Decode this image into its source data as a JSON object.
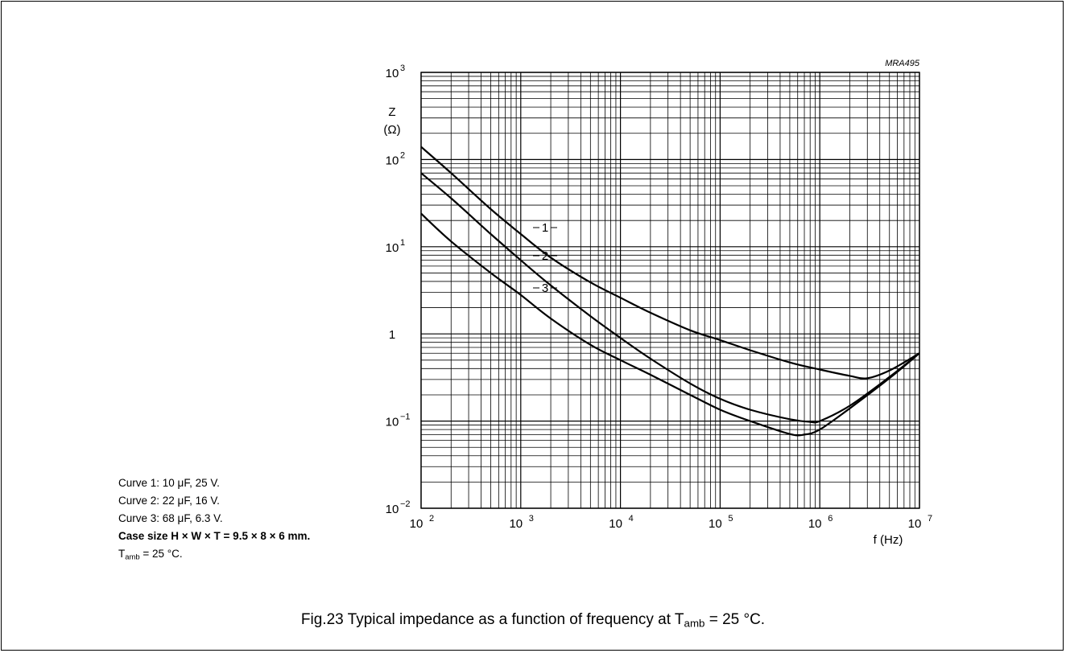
{
  "chart_data": {
    "type": "line",
    "figure_code": "MRA495",
    "title": "",
    "x_scale": "log",
    "y_scale": "log",
    "xlim": [
      100,
      10000000
    ],
    "ylim": [
      0.01,
      1000
    ],
    "grid": true,
    "xlabel": "f  (Hz)",
    "ylabel": "Z",
    "ylabel_unit": "(Ω)",
    "x_ticks": [
      {
        "base": "10",
        "exp": "2"
      },
      {
        "base": "10",
        "exp": "3"
      },
      {
        "base": "10",
        "exp": "4"
      },
      {
        "base": "10",
        "exp": "5"
      },
      {
        "base": "10",
        "exp": "6"
      },
      {
        "base": "10",
        "exp": "7"
      }
    ],
    "y_ticks": [
      {
        "base": "10",
        "exp": "−2"
      },
      {
        "base": "10",
        "exp": "−1"
      },
      {
        "base": "1",
        "exp": ""
      },
      {
        "base": "10",
        "exp": "1"
      },
      {
        "base": "10",
        "exp": "2"
      },
      {
        "base": "10",
        "exp": "3"
      }
    ],
    "series": [
      {
        "name": "1",
        "x": [
          100,
          200,
          500,
          1000,
          2000,
          5000,
          10000,
          20000,
          50000,
          100000,
          200000,
          500000,
          1000000,
          2000000,
          3000000,
          5000000,
          10000000
        ],
        "y": [
          140,
          70,
          27,
          14,
          7.5,
          3.9,
          2.6,
          1.75,
          1.1,
          0.85,
          0.65,
          0.47,
          0.39,
          0.33,
          0.31,
          0.38,
          0.6
        ]
      },
      {
        "name": "2",
        "x": [
          100,
          200,
          500,
          1000,
          2000,
          5000,
          10000,
          20000,
          50000,
          100000,
          200000,
          500000,
          800000,
          1000000,
          2000000,
          5000000,
          10000000
        ],
        "y": [
          70,
          36,
          14,
          7,
          3.6,
          1.6,
          0.9,
          0.52,
          0.27,
          0.18,
          0.135,
          0.105,
          0.098,
          0.1,
          0.15,
          0.32,
          0.6
        ]
      },
      {
        "name": "3",
        "x": [
          100,
          200,
          500,
          1000,
          2000,
          5000,
          10000,
          20000,
          50000,
          100000,
          200000,
          500000,
          700000,
          1000000,
          2000000,
          5000000,
          10000000
        ],
        "y": [
          24,
          11.5,
          5,
          2.8,
          1.5,
          0.75,
          0.5,
          0.34,
          0.2,
          0.135,
          0.1,
          0.071,
          0.07,
          0.08,
          0.14,
          0.31,
          0.6
        ]
      }
    ]
  },
  "notes": {
    "curve1": "Curve 1: 10 μF, 25 V.",
    "curve2": "Curve 2: 22 μF, 16 V.",
    "curve3": "Curve 3: 68 μF, 6.3 V.",
    "case_size": "Case size H × W × T = 9.5 × 8 × 6 mm.",
    "tamb_prefix": "T",
    "tamb_sub": "amb",
    "tamb_suffix": " = 25 °C."
  },
  "caption": {
    "prefix": "Fig.23  Typical impedance as a function of frequency at T",
    "sub": "amb",
    "suffix": " = 25 °C."
  }
}
